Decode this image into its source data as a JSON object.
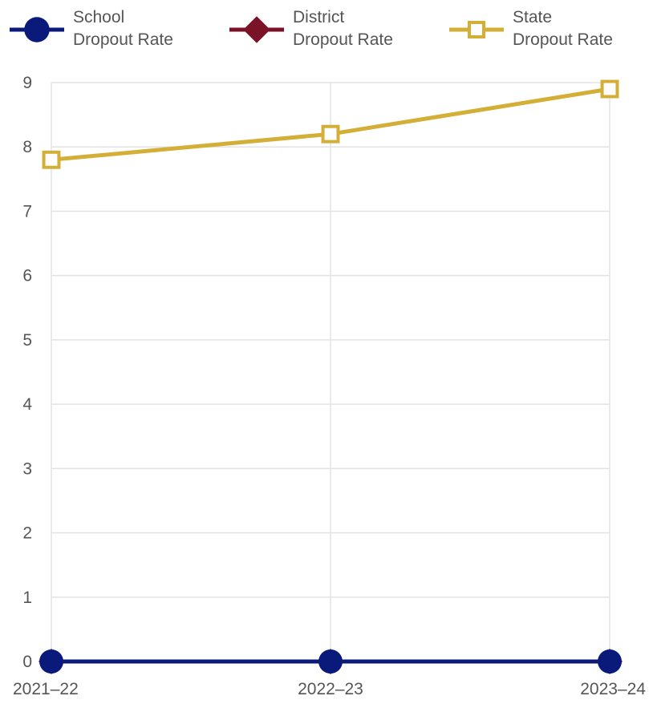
{
  "chart_data": {
    "type": "line",
    "categories": [
      "2021–22",
      "2022–23",
      "2023–24"
    ],
    "ylim": [
      0,
      9
    ],
    "yticks": [
      0,
      1,
      2,
      3,
      4,
      5,
      6,
      7,
      8,
      9
    ],
    "grid": true,
    "legend_position": "top",
    "series": [
      {
        "name_lines": [
          "School",
          "Dropout Rate"
        ],
        "values": [
          0,
          0,
          0
        ],
        "color": "#0a1a7a",
        "marker": "circle"
      },
      {
        "name_lines": [
          "District",
          "Dropout Rate"
        ],
        "values": [
          0,
          0,
          0
        ],
        "color": "#7a1328",
        "marker": "diamond"
      },
      {
        "name_lines": [
          "State",
          "Dropout Rate"
        ],
        "values": [
          7.8,
          8.2,
          8.9
        ],
        "color": "#d4af37",
        "marker": "square-open"
      }
    ]
  }
}
